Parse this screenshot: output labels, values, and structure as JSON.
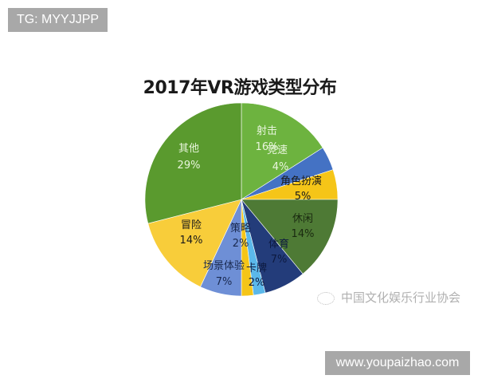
{
  "watermarks": {
    "top_left": "TG: MYYJJPP",
    "bottom_right": "www.youpaizhao.com",
    "org_icon": "wechat-logo-icon",
    "org_text": "中国文化娱乐行业协会"
  },
  "chart_data": {
    "type": "pie",
    "title": "2017年VR游戏类型分布",
    "start_angle_deg": 0,
    "direction": "clockwise",
    "legend": "none (labels on slices)",
    "slices": [
      {
        "label": "射击",
        "value": 16,
        "pct": "16%",
        "color": "#6db33f"
      },
      {
        "label": "竞速",
        "value": 4,
        "pct": "4%",
        "color": "#4472c4"
      },
      {
        "label": "角色扮演",
        "value": 5,
        "pct": "5%",
        "color": "#f5c518"
      },
      {
        "label": "休闲",
        "value": 14,
        "pct": "14%",
        "color": "#4e7a35"
      },
      {
        "label": "体育",
        "value": 7,
        "pct": "7%",
        "color": "#233c7a"
      },
      {
        "label": "卡牌",
        "value": 2,
        "pct": "2%",
        "color": "#5bb8ea"
      },
      {
        "label": "策略",
        "value": 2,
        "pct": "2%",
        "color": "#f5c518"
      },
      {
        "label": "场景体验",
        "value": 7,
        "pct": "7%",
        "color": "#6e8fd6"
      },
      {
        "label": "冒险",
        "value": 14,
        "pct": "14%",
        "color": "#f8cd3a"
      },
      {
        "label": "其他",
        "value": 29,
        "pct": "29%",
        "color": "#5a9a2e"
      }
    ],
    "label_positions": [
      {
        "name": [
          335,
          168
        ],
        "pct": [
          335,
          188
        ],
        "color": "#e8f5dc"
      },
      {
        "name": [
          348,
          192
        ],
        "pct": [
          352,
          213
        ],
        "color": "#e8f5dc"
      },
      {
        "name": [
          378,
          231
        ],
        "pct": [
          380,
          250
        ],
        "color": "#1a1a1a"
      },
      {
        "name": [
          380,
          278
        ],
        "pct": [
          380,
          297
        ],
        "color": "#1a2a10"
      },
      {
        "name": [
          350,
          310
        ],
        "pct": [
          350,
          329
        ],
        "color": "#0d1a40"
      },
      {
        "name": [
          322,
          340
        ],
        "pct": [
          322,
          358
        ],
        "color": "#0d1a40"
      },
      {
        "name": [
          302,
          290
        ],
        "pct": [
          302,
          309
        ],
        "color": "#1a2a50"
      },
      {
        "name": [
          281,
          337
        ],
        "pct": [
          281,
          357
        ],
        "color": "#1a2a50"
      },
      {
        "name": [
          240,
          286
        ],
        "pct": [
          240,
          305
        ],
        "color": "#1a1a1a"
      },
      {
        "name": [
          237,
          190
        ],
        "pct": [
          237,
          211
        ],
        "color": "#e8f5dc"
      }
    ]
  }
}
